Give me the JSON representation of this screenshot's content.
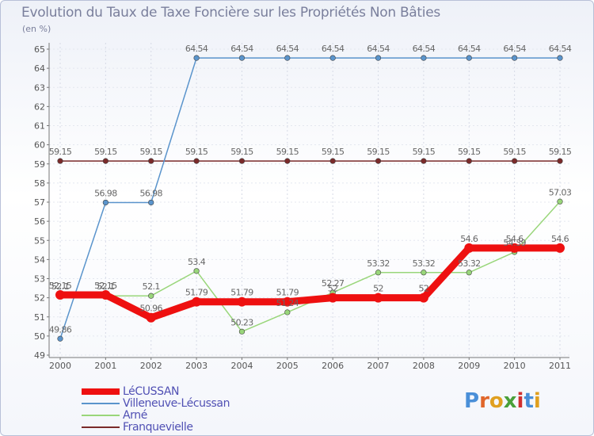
{
  "title": "Evolution du Taux de Taxe Foncière sur les Propriétés Non Bâties",
  "subtitle": "(en %)",
  "logo": "Proxiti",
  "chart_data": {
    "type": "line",
    "x": [
      "2000",
      "2001",
      "2002",
      "2003",
      "2004",
      "2005",
      "2006",
      "2007",
      "2008",
      "2009",
      "2010",
      "2011"
    ],
    "ylim": [
      49,
      65
    ],
    "yticks": [
      49,
      50,
      51,
      52,
      53,
      54,
      55,
      56,
      57,
      58,
      59,
      60,
      61,
      62,
      63,
      64,
      65
    ],
    "series": [
      {
        "name": "LéCUSSAN",
        "color": "#ee1010",
        "values": [
          52.15,
          52.15,
          50.96,
          51.79,
          51.79,
          51.79,
          52,
          52,
          52,
          54.6,
          54.6,
          54.6
        ],
        "labels": [
          "52.15",
          "52.15",
          "50.96",
          "51.79",
          "51.79",
          "51.79",
          "52",
          "52",
          "52",
          "54.6",
          "54.6",
          "54.6"
        ]
      },
      {
        "name": "Villeneuve-Lécussan",
        "color": "#5a94cc",
        "values": [
          49.86,
          56.98,
          56.98,
          64.54,
          64.54,
          64.54,
          64.54,
          64.54,
          64.54,
          64.54,
          64.54,
          64.54
        ],
        "labels": [
          "49.86",
          "56.98",
          "56.98",
          "64.54",
          "64.54",
          "64.54",
          "64.54",
          "64.54",
          "64.54",
          "64.54",
          "64.54",
          "64.54"
        ]
      },
      {
        "name": "Arné",
        "color": "#99d67a",
        "values": [
          52.1,
          52.1,
          52.1,
          53.4,
          50.23,
          51.24,
          52.27,
          53.32,
          53.32,
          53.32,
          54.39,
          57.03
        ],
        "labels": [
          "52.1",
          "52.1",
          "52.1",
          "53.4",
          "50.23",
          "51.24",
          "52.27",
          "53.32",
          "53.32",
          "53.32",
          "54.39",
          "57.03"
        ]
      },
      {
        "name": "Franquevielle",
        "color": "#7a2a2a",
        "values": [
          59.15,
          59.15,
          59.15,
          59.15,
          59.15,
          59.15,
          59.15,
          59.15,
          59.15,
          59.15,
          59.15,
          59.15
        ],
        "labels": [
          "59.15",
          "59.15",
          "59.15",
          "59.15",
          "59.15",
          "59.15",
          "59.15",
          "59.15",
          "59.15",
          "59.15",
          "59.15",
          "59.15"
        ]
      }
    ]
  }
}
